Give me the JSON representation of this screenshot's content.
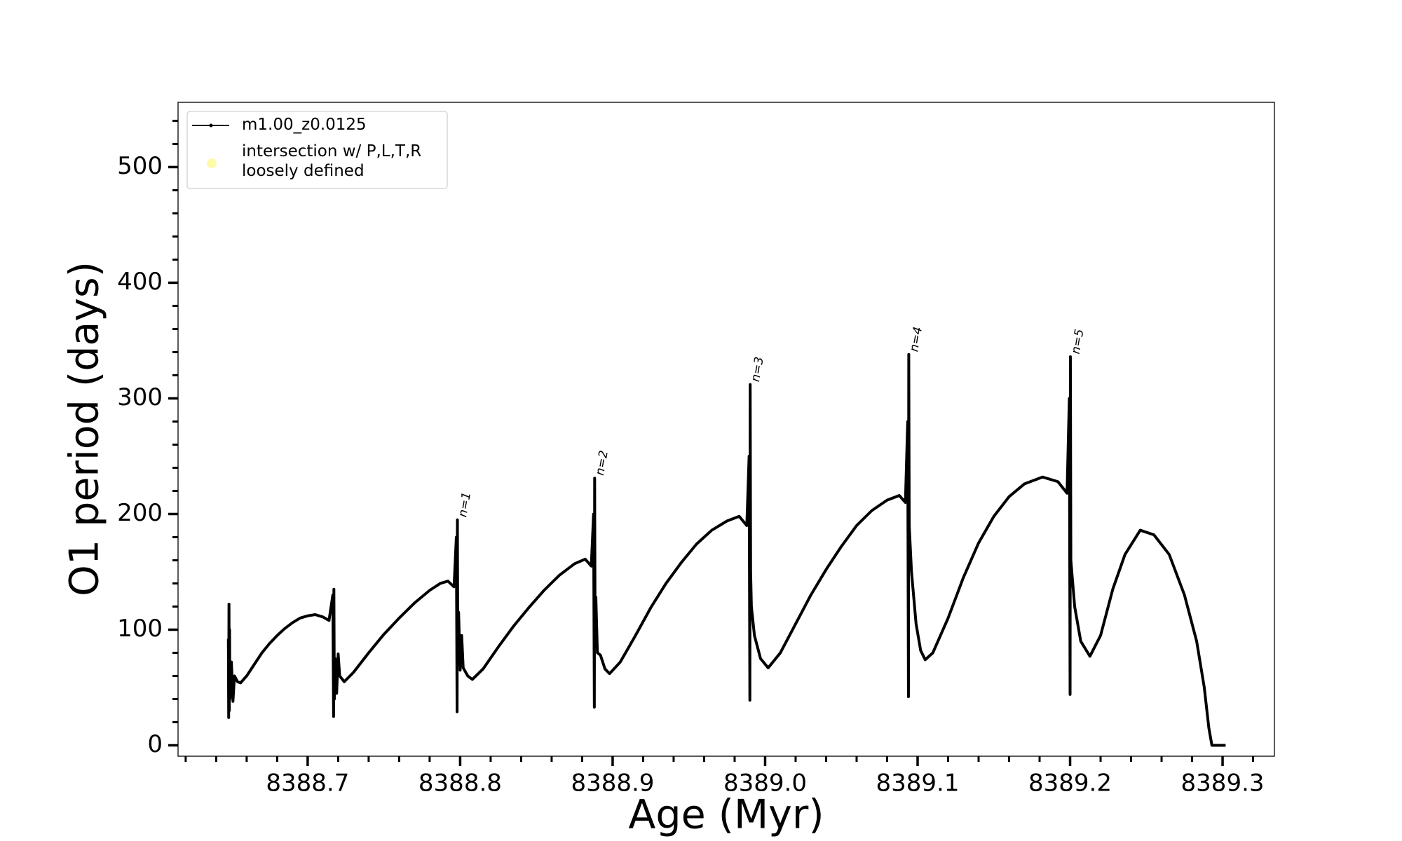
{
  "chart_data": {
    "type": "line",
    "xlabel": "Age (Myr)",
    "ylabel": "O1 period (days)",
    "xlim": [
      8388.615,
      8389.334
    ],
    "ylim": [
      -9.4,
      556
    ],
    "xticks": [
      8388.7,
      8388.8,
      8388.9,
      {
        "value": 8389,
        "label": "8389.0"
      },
      8389.1,
      8389.2,
      8389.3
    ],
    "yticks": [
      0,
      100,
      200,
      300,
      400,
      500
    ],
    "xticks_minor": [
      8388.62,
      8388.64,
      8388.66,
      8388.68,
      8388.72,
      8388.74,
      8388.76,
      8388.78,
      8388.82,
      8388.84,
      8388.86,
      8388.88,
      8388.92,
      8388.94,
      8388.96,
      8388.98,
      8389.02,
      8389.04,
      8389.06,
      8389.08,
      8389.12,
      8389.14,
      8389.16,
      8389.18,
      8389.22,
      8389.24,
      8389.26,
      8389.28,
      8389.32
    ],
    "yticks_minor": [
      20,
      40,
      60,
      80,
      120,
      140,
      160,
      180,
      220,
      240,
      260,
      280,
      320,
      340,
      360,
      380,
      420,
      440,
      460,
      480,
      520,
      540
    ],
    "legend": "upper left",
    "series": [
      {
        "name": "m1.00_z0.0125",
        "color": "#000000",
        "x": [
          8388.648,
          8388.6482,
          8388.6484,
          8388.6486,
          8388.6488,
          8388.649,
          8388.65,
          8388.651,
          8388.652,
          8388.654,
          8388.656,
          8388.66,
          8388.665,
          8388.67,
          8388.675,
          8388.68,
          8388.685,
          8388.69,
          8388.695,
          8388.7,
          8388.705,
          8388.71,
          8388.714,
          8388.7165,
          8388.717,
          8388.7172,
          8388.7175,
          8388.718,
          8388.719,
          8388.72,
          8388.721,
          8388.724,
          8388.73,
          8388.74,
          8388.75,
          8388.76,
          8388.77,
          8388.78,
          8388.787,
          8388.792,
          8388.796,
          8388.7975,
          8388.798,
          8388.7982,
          8388.7985,
          8388.799,
          8388.8,
          8388.801,
          8388.802,
          8388.805,
          8388.808,
          8388.815,
          8388.825,
          8388.835,
          8388.845,
          8388.855,
          8388.865,
          8388.875,
          8388.882,
          8388.886,
          8388.8875,
          8388.888,
          8388.8882,
          8388.8885,
          8388.889,
          8388.89,
          8388.892,
          8388.895,
          8388.898,
          8388.905,
          8388.915,
          8388.925,
          8388.935,
          8388.945,
          8388.955,
          8388.965,
          8388.975,
          8388.983,
          8388.988,
          8388.9895,
          8388.99,
          8388.9902,
          8388.9905,
          8388.991,
          8388.993,
          8388.997,
          8389.002,
          8389.01,
          8389.02,
          8389.03,
          8389.04,
          8389.05,
          8389.06,
          8389.07,
          8389.08,
          8389.088,
          8389.092,
          8389.0935,
          8389.094,
          8389.0942,
          8389.0945,
          8389.096,
          8389.099,
          8389.102,
          8389.105,
          8389.11,
          8389.12,
          8389.13,
          8389.14,
          8389.15,
          8389.16,
          8389.17,
          8389.182,
          8389.192,
          8389.198,
          8389.1995,
          8389.2,
          8389.2002,
          8389.2005,
          8389.203,
          8389.207,
          8389.213,
          8389.22,
          8389.228,
          8389.236,
          8389.246,
          8389.255,
          8389.265,
          8389.275,
          8389.283,
          8389.288,
          8389.291,
          8389.293,
          8389.298,
          8389.302
        ],
        "values": [
          92,
          24,
          122,
          30,
          100,
          40,
          72,
          38,
          60,
          55,
          54,
          60,
          70,
          80,
          88,
          95,
          101,
          106,
          110,
          112,
          113,
          111,
          108,
          130,
          25,
          135,
          40,
          75,
          45,
          79,
          60,
          55,
          63,
          80,
          96,
          110,
          123,
          134,
          140,
          142,
          137,
          180,
          29,
          195,
          70,
          115,
          65,
          95,
          67,
          60,
          57,
          66,
          85,
          103,
          119,
          134,
          147,
          157,
          161,
          155,
          200,
          33,
          231,
          90,
          128,
          80,
          78,
          66,
          62,
          72,
          95,
          119,
          140,
          158,
          174,
          186,
          194,
          198,
          190,
          250,
          39,
          312,
          150,
          120,
          95,
          75,
          67,
          80,
          105,
          130,
          152,
          172,
          190,
          203,
          212,
          216,
          210,
          280,
          42,
          338,
          190,
          150,
          105,
          82,
          74,
          80,
          110,
          145,
          175,
          198,
          215,
          226,
          232,
          228,
          218,
          300,
          44,
          336,
          160,
          120,
          90,
          77,
          95,
          135,
          165,
          186,
          182,
          165,
          130,
          90,
          50,
          15,
          0,
          0,
          0
        ]
      },
      {
        "name": "intersection w/ P,L,T,R\nloosely defined",
        "color": "#fffaaa",
        "x": [],
        "values": []
      }
    ],
    "annotations": [
      {
        "text": "n=1",
        "x": 8388.798,
        "y": 195
      },
      {
        "text": "n=2",
        "x": 8388.888,
        "y": 231
      },
      {
        "text": "n=3",
        "x": 8388.99,
        "y": 312
      },
      {
        "text": "n=4",
        "x": 8389.094,
        "y": 338
      },
      {
        "text": "n=5",
        "x": 8389.2,
        "y": 336
      }
    ]
  }
}
